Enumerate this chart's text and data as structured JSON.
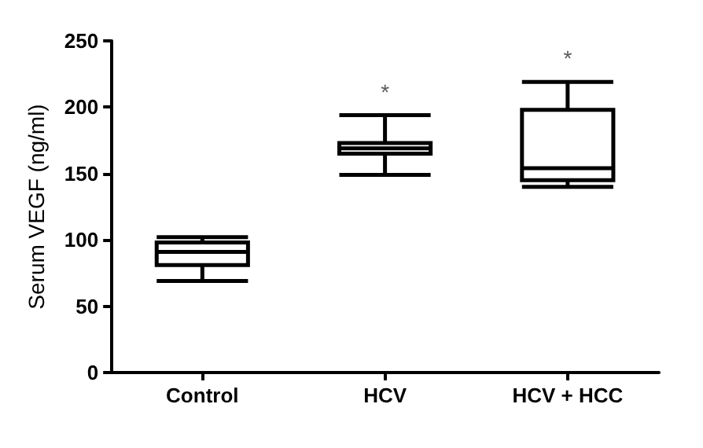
{
  "chart_data": {
    "type": "box",
    "ylabel": "Serum VEGF (ng/ml)",
    "categories": [
      "Control",
      "HCV",
      "HCV + HCC"
    ],
    "series": [
      {
        "color": "#000000",
        "boxes": [
          {
            "low": 69,
            "q1": 81,
            "median": 91,
            "q3": 98,
            "high": 102
          },
          {
            "low": 149,
            "q1": 165,
            "median": 169,
            "q3": 173,
            "high": 194
          },
          {
            "low": 140,
            "q1": 145,
            "median": 154,
            "q3": 198,
            "high": 219
          }
        ]
      }
    ],
    "ylim": [
      0,
      250
    ],
    "yticks": [
      0,
      50,
      100,
      150,
      200,
      250
    ],
    "grid": false,
    "annotations": [
      "*",
      "*"
    ]
  }
}
